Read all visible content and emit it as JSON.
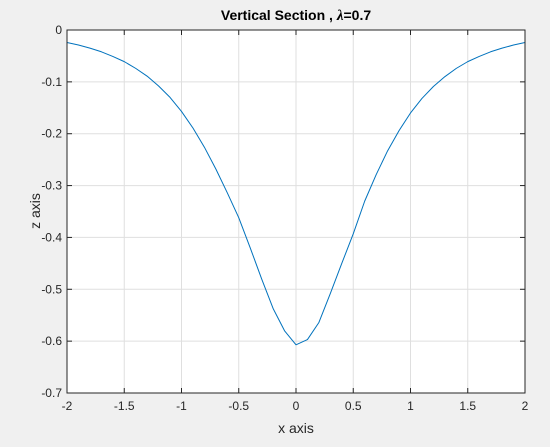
{
  "chart_data": {
    "type": "line",
    "title_prefix": "Vertical Section , ",
    "title_symbol": "λ",
    "title_suffix": "=0.7",
    "xlabel": "x axis",
    "ylabel": "z axis",
    "xlim": [
      -2,
      2
    ],
    "ylim": [
      -0.7,
      0
    ],
    "xticks": [
      -2,
      -1.5,
      -1,
      -0.5,
      0,
      0.5,
      1,
      1.5,
      2
    ],
    "xtick_labels": [
      "-2",
      "-1.5",
      "-1",
      "-0.5",
      "0",
      "0.5",
      "1",
      "1.5",
      "2"
    ],
    "yticks": [
      0,
      -0.1,
      -0.2,
      -0.3,
      -0.4,
      -0.5,
      -0.6,
      -0.7
    ],
    "ytick_labels": [
      "0",
      "-0.1",
      "-0.2",
      "-0.3",
      "-0.4",
      "-0.5",
      "-0.6",
      "-0.7"
    ],
    "grid": true,
    "line_color": "#0072bd",
    "series": [
      {
        "x": [
          -2,
          -1.9,
          -1.8,
          -1.7,
          -1.6,
          -1.5,
          -1.4,
          -1.3,
          -1.2,
          -1.1,
          -1.0,
          -0.9,
          -0.8,
          -0.7,
          -0.6,
          -0.5,
          -0.4,
          -0.3,
          -0.2,
          -0.1,
          0,
          0.1,
          0.2,
          0.3,
          0.4,
          0.5,
          0.6,
          0.7,
          0.8,
          0.9,
          1.0,
          1.1,
          1.2,
          1.3,
          1.4,
          1.5,
          1.6,
          1.7,
          1.8,
          1.9,
          2.0
        ],
        "y": [
          -0.024,
          -0.029,
          -0.035,
          -0.042,
          -0.051,
          -0.061,
          -0.074,
          -0.089,
          -0.108,
          -0.13,
          -0.157,
          -0.189,
          -0.226,
          -0.268,
          -0.314,
          -0.362,
          -0.42,
          -0.48,
          -0.537,
          -0.58,
          -0.607,
          -0.597,
          -0.564,
          -0.508,
          -0.45,
          -0.393,
          -0.33,
          -0.279,
          -0.233,
          -0.194,
          -0.16,
          -0.132,
          -0.109,
          -0.09,
          -0.074,
          -0.061,
          -0.051,
          -0.042,
          -0.035,
          -0.029,
          -0.024
        ]
      }
    ]
  }
}
